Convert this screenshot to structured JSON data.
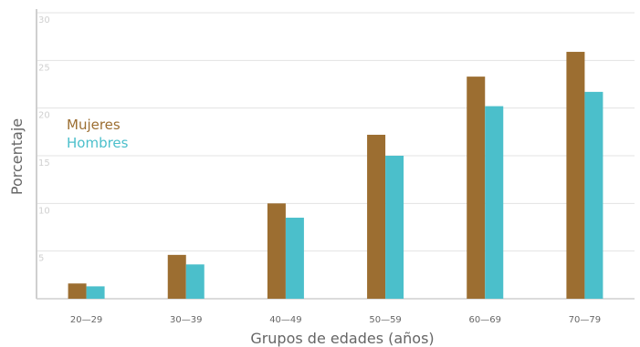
{
  "chart_data": {
    "type": "bar",
    "xlabel": "Grupos de edades (años)",
    "ylabel": "Porcentaje",
    "ylim": [
      0,
      30
    ],
    "yticks": [
      "5",
      "10",
      "15",
      "20",
      "25",
      "30"
    ],
    "grid": true,
    "legend_position": "top-left",
    "categories": [
      "20—29",
      "30—39",
      "40—49",
      "50—59",
      "60—69",
      "70—79"
    ],
    "series": [
      {
        "name": "Mujeres",
        "color": "#9c6e31",
        "values": [
          1.6,
          4.6,
          10.0,
          17.2,
          23.3,
          25.9
        ]
      },
      {
        "name": "Hombres",
        "color": "#4bbfcb",
        "values": [
          1.3,
          3.6,
          8.5,
          15.0,
          20.2,
          21.7
        ]
      }
    ]
  }
}
